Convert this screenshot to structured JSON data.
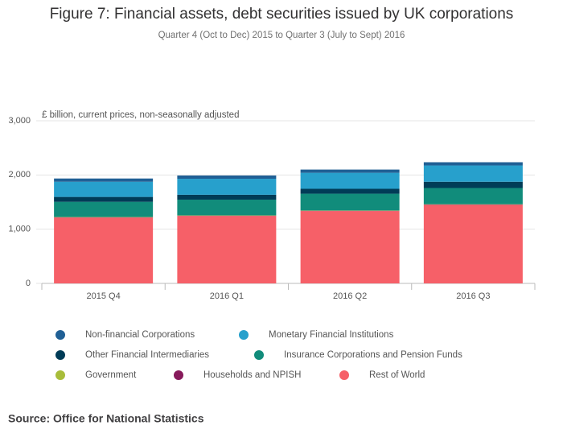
{
  "chart_data": {
    "type": "stacked-bar",
    "title": "Figure 7: Financial assets, debt securities issued by UK corporations",
    "subtitle": "Quarter 4 (Oct to Dec) 2015 to Quarter 3 (July to Sept) 2016",
    "y_label": "£ billion, current prices, non-seasonally adjusted",
    "source": "Source: Office for National Statistics",
    "categories": [
      "2015 Q4",
      "2016 Q1",
      "2016 Q2",
      "2016 Q3"
    ],
    "series": [
      {
        "name": "Non-financial Corporations",
        "color": "#206095",
        "values": [
          60,
          60,
          60,
          60
        ]
      },
      {
        "name": "Monetary Financial Institutions",
        "color": "#27a0cc",
        "values": [
          280,
          295,
          295,
          300
        ]
      },
      {
        "name": "Other Financial Intermediaries",
        "color": "#003c57",
        "values": [
          90,
          90,
          90,
          115
        ]
      },
      {
        "name": "Insurance Corporations and Pension Funds",
        "color": "#118c7b",
        "values": [
          280,
          290,
          310,
          300
        ]
      },
      {
        "name": "Government",
        "color": "#a8bd3a",
        "values": [
          5,
          5,
          5,
          5
        ]
      },
      {
        "name": "Households and NPISH",
        "color": "#871a5b",
        "values": [
          5,
          5,
          5,
          5
        ]
      },
      {
        "name": "Rest of World",
        "color": "#f66068",
        "values": [
          1215,
          1245,
          1335,
          1450
        ]
      }
    ],
    "ylim": [
      0,
      3000
    ],
    "yticks": [
      0,
      {
        "value": 1000,
        "label": "1,000"
      },
      {
        "value": 2000,
        "label": "2,000"
      },
      {
        "value": 3000,
        "label": "3,000"
      }
    ],
    "grid": true
  }
}
